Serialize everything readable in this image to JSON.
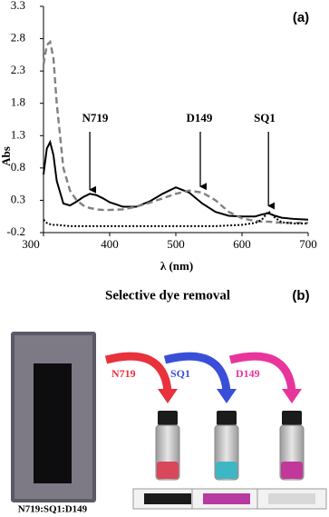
{
  "chart_data": {
    "type": "line",
    "panel_label": "(a)",
    "x_label": "λ (nm)",
    "y_label": "Abs",
    "xlim": [
      300,
      700
    ],
    "xticks": [
      300,
      400,
      500,
      600,
      700
    ],
    "ylim": [
      -0.2,
      3.3
    ],
    "yticks": [
      -0.2,
      0.3,
      0.8,
      1.3,
      1.8,
      2.3,
      2.8,
      3.3
    ],
    "x": [
      300,
      305,
      310,
      315,
      320,
      330,
      340,
      350,
      360,
      370,
      380,
      390,
      400,
      420,
      440,
      460,
      480,
      500,
      520,
      540,
      560,
      580,
      600,
      620,
      630,
      640,
      650,
      660,
      680,
      700
    ],
    "series": [
      {
        "color": "#000000",
        "dash": "solid",
        "values": [
          0.7,
          1.1,
          1.2,
          1.0,
          0.6,
          0.25,
          0.22,
          0.28,
          0.35,
          0.4,
          0.38,
          0.33,
          0.27,
          0.2,
          0.2,
          0.28,
          0.4,
          0.5,
          0.42,
          0.25,
          0.12,
          0.06,
          0.05,
          0.05,
          0.08,
          0.1,
          0.06,
          0.03,
          0.01,
          0.0
        ]
      },
      {
        "color": "#808080",
        "dash": "dashed",
        "values": [
          2.4,
          2.7,
          2.75,
          2.5,
          1.8,
          0.8,
          0.45,
          0.3,
          0.22,
          0.18,
          0.16,
          0.15,
          0.15,
          0.16,
          0.2,
          0.26,
          0.33,
          0.4,
          0.45,
          0.42,
          0.3,
          0.12,
          0.02,
          -0.02,
          -0.03,
          -0.03,
          -0.04,
          -0.05,
          -0.05,
          -0.05
        ]
      },
      {
        "color": "#000000",
        "dash": "dotted",
        "values": [
          0.0,
          -0.05,
          -0.07,
          -0.08,
          -0.08,
          -0.09,
          -0.1,
          -0.1,
          -0.1,
          -0.1,
          -0.1,
          -0.1,
          -0.1,
          -0.1,
          -0.1,
          -0.1,
          -0.1,
          -0.1,
          -0.1,
          -0.1,
          -0.1,
          -0.09,
          -0.08,
          -0.05,
          0.0,
          0.13,
          0.03,
          -0.04,
          -0.06,
          -0.06
        ]
      }
    ],
    "annotations": [
      "N719",
      "D149",
      "SQ1"
    ]
  },
  "panel_b": {
    "label": "(b)",
    "title": "Selective dye removal",
    "dyes": [
      {
        "name": "N719",
        "color": "#e8323c"
      },
      {
        "name": "SQ1",
        "color": "#3a4fd8"
      },
      {
        "name": "D149",
        "color": "#e8359c"
      }
    ],
    "film_label": "N719:SQ1:D149"
  }
}
